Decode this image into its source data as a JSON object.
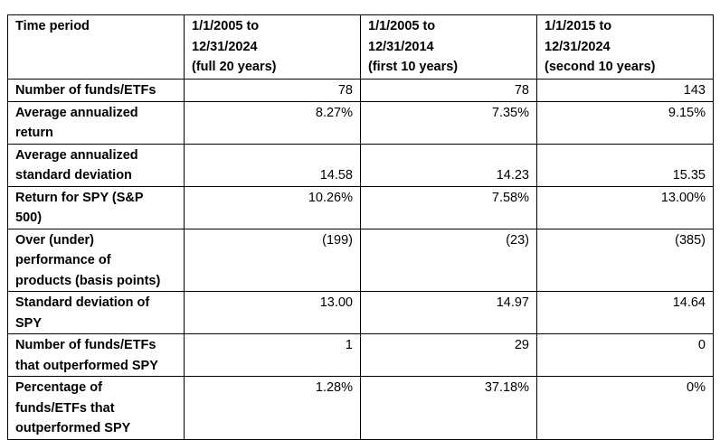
{
  "table": {
    "header": [
      [
        "Time period"
      ],
      [
        "1/1/2005 to",
        "12/31/2024",
        "(full 20 years)"
      ],
      [
        "1/1/2005 to",
        "12/31/2014",
        "(first 10 years)"
      ],
      [
        "1/1/2015 to",
        "12/31/2024",
        "(second 10 years)"
      ]
    ],
    "rows": [
      {
        "label": [
          "Number of funds/ETFs"
        ],
        "values": [
          "78",
          "78",
          "143"
        ]
      },
      {
        "label": [
          "Average annualized",
          "return"
        ],
        "values": [
          "8.27%",
          "7.35%",
          "9.15%"
        ]
      },
      {
        "label": [
          "Average annualized",
          "standard deviation"
        ],
        "values": [
          "14.58",
          "14.23",
          "15.35"
        ],
        "valign": "bottom"
      },
      {
        "label": [
          "Return for SPY (S&P",
          "500)"
        ],
        "values": [
          "10.26%",
          "7.58%",
          "13.00%"
        ]
      },
      {
        "label": [
          "Over (under)",
          "performance of",
          "products (basis points)"
        ],
        "values": [
          "(199)",
          "(23)",
          "(385)"
        ]
      },
      {
        "label": [
          "Standard deviation of",
          "SPY"
        ],
        "values": [
          "13.00",
          "14.97",
          "14.64"
        ]
      },
      {
        "label": [
          "Number of funds/ETFs",
          "that outperformed SPY"
        ],
        "values": [
          "1",
          "29",
          "0"
        ]
      },
      {
        "label": [
          "Percentage of",
          "funds/ETFs that",
          "outperformed SPY"
        ],
        "values": [
          "1.28%",
          "37.18%",
          "0%"
        ]
      }
    ]
  }
}
